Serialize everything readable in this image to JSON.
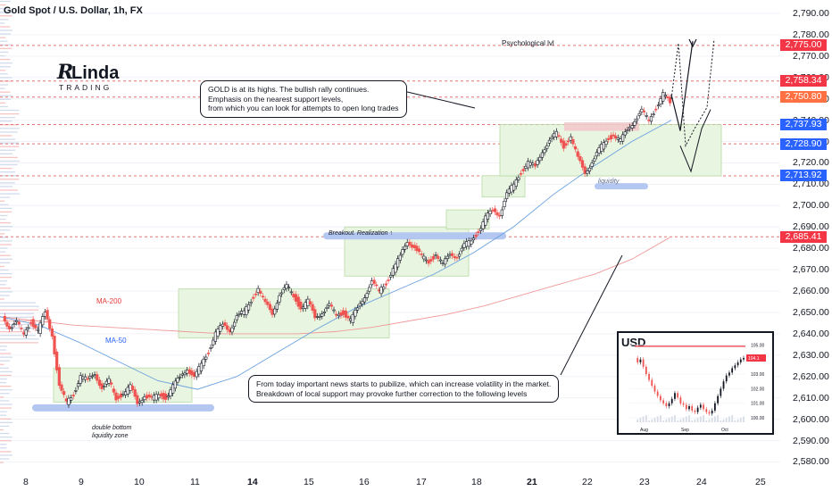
{
  "header": {
    "title": "Gold Spot / U.S. Dollar, 1h, FX"
  },
  "colors": {
    "up": "#26a69a",
    "down": "#ef5350",
    "candle_body_up": "#131722",
    "support_zone": "#e8f5e0",
    "support_border": "#b7d9a4",
    "liquidity_bar": "#b3c7f0",
    "ma200": "#ef9a9a",
    "ma50": "#6aa1e0",
    "tag_red": "#f23645",
    "tag_blue": "#2962ff",
    "tag_orange": "#ff7043"
  },
  "chart_data": {
    "type": "line",
    "title": "Gold Spot / U.S. Dollar, 1h, FX",
    "y_axis": {
      "ylim": [
        2576,
        2795
      ],
      "ticks": [
        2580,
        2590,
        2600,
        2610,
        2620,
        2630,
        2640,
        2650,
        2660,
        2670,
        2680,
        2690,
        2700,
        2710,
        2720,
        2730,
        2740,
        2750,
        2760,
        2770,
        2780,
        2790
      ],
      "tick_labels": [
        "2,580.00",
        "2,590.00",
        "2,600.00",
        "2,610.00",
        "2,620.00",
        "2,630.00",
        "2,640.00",
        "2,650.00",
        "2,660.00",
        "2,670.00",
        "2,680.00",
        "2,690.00",
        "2,700.00",
        "2,710.00",
        "2,720.00",
        "2,730.00",
        "2,740.00",
        "2,750.00",
        "2,760.00",
        "2,770.00",
        "2,780.00",
        "2,790.00"
      ]
    },
    "x_axis": {
      "tick_labels": [
        "8",
        "9",
        "10",
        "11",
        "14",
        "15",
        "16",
        "17",
        "18",
        "21",
        "22",
        "23",
        "24",
        "25"
      ],
      "bold_labels": [
        "14",
        "21"
      ]
    },
    "series": [
      {
        "name": "Price",
        "values": [
          2648,
          2643,
          2645,
          2640,
          2646,
          2641,
          2650,
          2640,
          2615,
          2608,
          2612,
          2620,
          2618,
          2622,
          2614,
          2618,
          2610,
          2612,
          2615,
          2608,
          2611,
          2609,
          2612,
          2610,
          2615,
          2620,
          2624,
          2619,
          2626,
          2632,
          2640,
          2644,
          2642,
          2648,
          2650,
          2656,
          2661,
          2654,
          2650,
          2658,
          2662,
          2658,
          2652,
          2655,
          2648,
          2650,
          2653,
          2649,
          2650,
          2646,
          2652,
          2658,
          2664,
          2660,
          2664,
          2670,
          2676,
          2684,
          2680,
          2676,
          2674,
          2677,
          2672,
          2678,
          2676,
          2681,
          2684,
          2688,
          2694,
          2698,
          2696,
          2705,
          2710,
          2716,
          2720,
          2718,
          2726,
          2730,
          2734,
          2728,
          2732,
          2722,
          2716,
          2720,
          2726,
          2731,
          2733,
          2730,
          2736,
          2740,
          2744,
          2740,
          2746,
          2752,
          2748
        ]
      },
      {
        "name": "MA-200",
        "values": [
          2648,
          2646,
          2644,
          2643,
          2642,
          2641,
          2640,
          2640,
          2640,
          2641,
          2643,
          2646,
          2649,
          2653,
          2658,
          2663,
          2668,
          2675,
          2685
        ]
      },
      {
        "name": "MA-50",
        "values": [
          2648,
          2644,
          2636,
          2627,
          2618,
          2614,
          2620,
          2631,
          2642,
          2652,
          2660,
          2668,
          2678,
          2690,
          2705,
          2718,
          2730,
          2740
        ]
      }
    ],
    "price_tags": [
      {
        "label": "2,775.00",
        "value": 2775.0,
        "color": "red"
      },
      {
        "label": "2,758.34",
        "value": 2758.34,
        "color": "red"
      },
      {
        "label": "2,750.80",
        "value": 2750.8,
        "color": "orange"
      },
      {
        "label": "2,737.93",
        "value": 2737.93,
        "color": "blue"
      },
      {
        "label": "2,728.90",
        "value": 2728.9,
        "color": "blue"
      },
      {
        "label": "2,713.92",
        "value": 2713.92,
        "color": "blue"
      },
      {
        "label": "2,685.41",
        "value": 2685.41,
        "color": "red"
      }
    ],
    "annotations": {
      "psych": "Psychological lvl",
      "callout1": [
        "GOLD is at its highs. The bullish rally continues.",
        "Emphasis on the nearest support levels,",
        "from which you can look for attempts to open long trades"
      ],
      "callout2": [
        "From today important news starts to pubilize, which can increase volatility in the market.",
        "Breakdown of local support may provoke further correction to the following levels"
      ],
      "ma200_label": "MA-200",
      "ma50_label": "MA-50",
      "breakout": "Breakout. Realization ↑",
      "liquidity": "liquidity",
      "double_bottom": [
        "double bottom",
        "liquidity zone"
      ]
    }
  },
  "logo": {
    "line1": "RLinda",
    "line2": "TRADING"
  },
  "inset": {
    "title": "USD",
    "y_ticks": [
      "105.00",
      "104.00",
      "103.00",
      "102.00",
      "101.00",
      "100.00"
    ],
    "x_ticks": [
      "Aug",
      "Sep",
      "Oct"
    ],
    "tag": "104.1",
    "values": [
      104.1,
      103.8,
      104.0,
      103.5,
      103.0,
      102.6,
      102.2,
      101.8,
      101.5,
      101.2,
      101.0,
      100.8,
      101.0,
      101.3,
      101.7,
      101.4,
      101.0,
      100.9,
      100.6,
      100.8,
      100.5,
      100.4,
      100.7,
      100.9,
      100.6,
      100.4,
      100.3,
      100.5,
      101.0,
      101.5,
      102.0,
      102.5,
      102.9,
      103.1,
      103.4,
      103.6,
      103.8,
      104.0,
      104.1
    ]
  }
}
